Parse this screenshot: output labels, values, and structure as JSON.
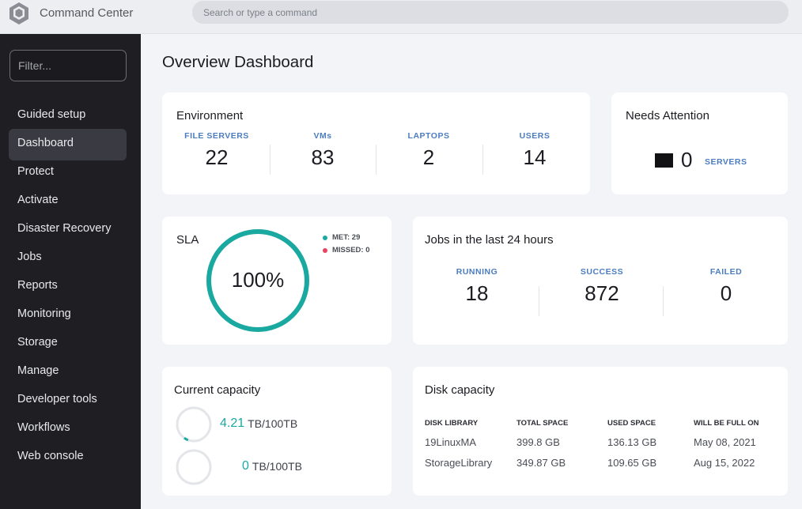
{
  "app": {
    "title": "Command Center"
  },
  "search": {
    "placeholder": "Search or type a command"
  },
  "sidebar": {
    "filter_placeholder": "Filter...",
    "items": [
      {
        "label": "Guided setup",
        "active": false
      },
      {
        "label": "Dashboard",
        "active": true
      },
      {
        "label": "Protect",
        "active": false
      },
      {
        "label": "Activate",
        "active": false
      },
      {
        "label": "Disaster Recovery",
        "active": false
      },
      {
        "label": "Jobs",
        "active": false
      },
      {
        "label": "Reports",
        "active": false
      },
      {
        "label": "Monitoring",
        "active": false
      },
      {
        "label": "Storage",
        "active": false
      },
      {
        "label": "Manage",
        "active": false
      },
      {
        "label": "Developer tools",
        "active": false
      },
      {
        "label": "Workflows",
        "active": false
      },
      {
        "label": "Web console",
        "active": false
      }
    ]
  },
  "page": {
    "title": "Overview Dashboard"
  },
  "environment": {
    "title": "Environment",
    "stats": [
      {
        "label": "FILE SERVERS",
        "value": "22"
      },
      {
        "label": "VMs",
        "value": "83"
      },
      {
        "label": "LAPTOPS",
        "value": "2"
      },
      {
        "label": "USERS",
        "value": "14"
      }
    ]
  },
  "attention": {
    "title": "Needs Attention",
    "value": "0",
    "label": "SERVERS"
  },
  "sla": {
    "title": "SLA",
    "percent_text": "100%",
    "percent_value": 100,
    "met": "MET: 29",
    "missed": "MISSED: 0",
    "met_color": "#1aa9a0",
    "missed_color": "#e8445f"
  },
  "jobs": {
    "title": "Jobs in the last 24 hours",
    "stats": [
      {
        "label": "RUNNING",
        "value": "18"
      },
      {
        "label": "SUCCESS",
        "value": "872"
      },
      {
        "label": "FAILED",
        "value": "0"
      }
    ]
  },
  "capacity": {
    "title": "Current capacity",
    "rows": [
      {
        "used": "4.21",
        "unit": "TB/100TB",
        "fraction": 0.0421
      },
      {
        "used": "0",
        "unit": "TB/100TB",
        "fraction": 0
      }
    ]
  },
  "disk": {
    "title": "Disk capacity",
    "columns": [
      "DISK LIBRARY",
      "TOTAL SPACE",
      "USED SPACE",
      "WILL BE FULL ON"
    ],
    "rows": [
      [
        "19LinuxMA",
        "399.8 GB",
        "136.13 GB",
        "May 08, 2021"
      ],
      [
        "StorageLibrary",
        "349.87 GB",
        "109.65 GB",
        "Aug 15, 2022"
      ]
    ]
  },
  "colors": {
    "accent": "#1aa9a0",
    "label_blue": "#4c7dc0",
    "sidebar_bg": "#1f1f23"
  }
}
